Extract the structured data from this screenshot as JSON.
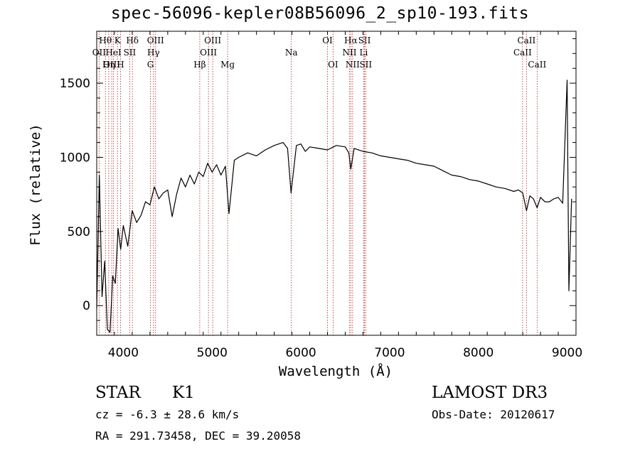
{
  "chart_data": {
    "type": "line",
    "title": "spec-56096-kepler08B56096_2_sp10-193.fits",
    "xlabel": "Wavelength (Å)",
    "ylabel": "Flux (relative)",
    "xlim": [
      3700,
      9100
    ],
    "ylim": [
      -200,
      1850
    ],
    "xticks": [
      4000,
      5000,
      6000,
      7000,
      8000,
      9000
    ],
    "yticks": [
      0,
      500,
      1000,
      1500
    ],
    "series": [
      {
        "name": "flux",
        "x": [
          3700,
          3730,
          3760,
          3790,
          3820,
          3850,
          3880,
          3910,
          3940,
          3970,
          4000,
          4050,
          4100,
          4150,
          4200,
          4250,
          4300,
          4350,
          4400,
          4450,
          4500,
          4550,
          4600,
          4650,
          4700,
          4750,
          4800,
          4850,
          4900,
          4950,
          5000,
          5050,
          5100,
          5150,
          5190,
          5250,
          5300,
          5400,
          5500,
          5600,
          5700,
          5800,
          5850,
          5890,
          5950,
          6000,
          6050,
          6100,
          6200,
          6300,
          6400,
          6500,
          6540,
          6563,
          6600,
          6700,
          6800,
          6900,
          7000,
          7100,
          7200,
          7300,
          7400,
          7500,
          7600,
          7700,
          7800,
          7900,
          8000,
          8100,
          8200,
          8300,
          8400,
          8450,
          8500,
          8542,
          8580,
          8620,
          8662,
          8700,
          8750,
          8800,
          8850,
          8900,
          8950,
          9000,
          9020,
          9050
        ],
        "y": [
          -20,
          880,
          60,
          300,
          -160,
          -180,
          200,
          150,
          520,
          380,
          540,
          400,
          640,
          560,
          610,
          700,
          680,
          800,
          720,
          760,
          780,
          600,
          750,
          860,
          800,
          880,
          820,
          900,
          870,
          960,
          900,
          950,
          880,
          940,
          620,
          980,
          1000,
          1030,
          1010,
          1050,
          1080,
          1100,
          1060,
          760,
          1080,
          1090,
          1040,
          1070,
          1060,
          1050,
          1080,
          1070,
          1030,
          920,
          1060,
          1040,
          1030,
          1010,
          1000,
          990,
          980,
          960,
          950,
          940,
          910,
          880,
          870,
          850,
          840,
          820,
          800,
          790,
          770,
          780,
          760,
          640,
          740,
          720,
          660,
          730,
          700,
          700,
          720,
          730,
          690,
          1520,
          100,
          720
        ]
      }
    ],
    "line_labels": [
      {
        "text": "Hθ",
        "wavelength": 3798,
        "row": 0
      },
      {
        "text": "OII",
        "wavelength": 3727,
        "row": 1
      },
      {
        "text": "OIII",
        "wavelength": 3869,
        "row": 2
      },
      {
        "text": "K",
        "wavelength": 3934,
        "row": 0
      },
      {
        "text": "HeI",
        "wavelength": 3889,
        "row": 1
      },
      {
        "text": "Hη",
        "wavelength": 3835,
        "row": 2
      },
      {
        "text": "Hδ",
        "wavelength": 4102,
        "row": 0
      },
      {
        "text": "SII",
        "wavelength": 4072,
        "row": 1
      },
      {
        "text": "H",
        "wavelength": 3968,
        "row": 2
      },
      {
        "text": "OIII",
        "wavelength": 4363,
        "row": 0
      },
      {
        "text": "Hγ",
        "wavelength": 4340,
        "row": 1
      },
      {
        "text": "G",
        "wavelength": 4305,
        "row": 2
      },
      {
        "text": "OIII",
        "wavelength": 5007,
        "row": 0
      },
      {
        "text": "OIII",
        "wavelength": 4959,
        "row": 1
      },
      {
        "text": "Hβ",
        "wavelength": 4861,
        "row": 2
      },
      {
        "text": "Mg",
        "wavelength": 5175,
        "row": 2
      },
      {
        "text": "Na",
        "wavelength": 5893,
        "row": 1
      },
      {
        "text": "OI",
        "wavelength": 6300,
        "row": 0
      },
      {
        "text": "OI",
        "wavelength": 6363,
        "row": 2
      },
      {
        "text": "Hα",
        "wavelength": 6563,
        "row": 0
      },
      {
        "text": "SII",
        "wavelength": 6717,
        "row": 0
      },
      {
        "text": "NII",
        "wavelength": 6548,
        "row": 1
      },
      {
        "text": "Li",
        "wavelength": 6708,
        "row": 1
      },
      {
        "text": "NII",
        "wavelength": 6583,
        "row": 2
      },
      {
        "text": "SII",
        "wavelength": 6731,
        "row": 2
      },
      {
        "text": "CaII",
        "wavelength": 8542,
        "row": 0
      },
      {
        "text": "CaII",
        "wavelength": 8498,
        "row": 1
      },
      {
        "text": "CaII",
        "wavelength": 8662,
        "row": 2
      }
    ]
  },
  "info": {
    "object_class": "STAR",
    "subclass": "K1",
    "survey": "LAMOST DR3",
    "redshift": "cz = -6.3 ± 28.6 km/s",
    "obs_date": "Obs-Date: 20120617",
    "coords": "RA = 291.73458, DEC =  39.20058"
  },
  "colors": {
    "axis": "#000000",
    "spectrum": "#000000",
    "line_marker": "#b22222",
    "background": "#ffffff"
  }
}
